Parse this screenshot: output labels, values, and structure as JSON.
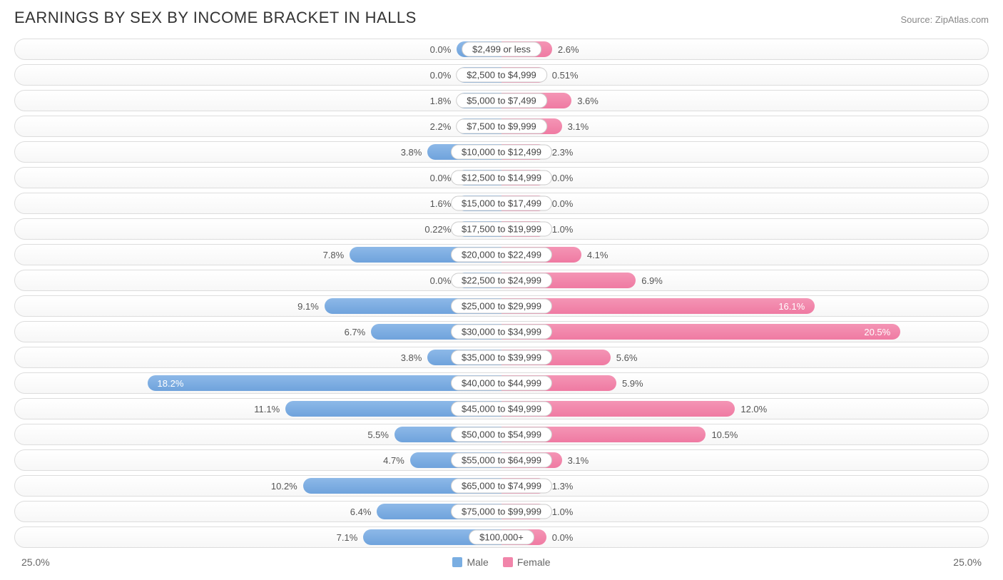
{
  "title": "EARNINGS BY SEX BY INCOME BRACKET IN HALLS",
  "source": "Source: ZipAtlas.com",
  "chart": {
    "type": "bidirectional-bar",
    "max_percent": 25.0,
    "axis_label_left": "25.0%",
    "axis_label_right": "25.0%",
    "min_bar_percent": 2.3,
    "inside_label_threshold": 14.0,
    "colors": {
      "male": "#7aaee2",
      "female": "#f185aa",
      "track_border": "#dddddd",
      "text": "#555555",
      "text_inside": "#ffffff",
      "category_bg": "#ffffff",
      "category_border": "#cccccc"
    },
    "legend": [
      {
        "label": "Male",
        "color": "#7aaee2"
      },
      {
        "label": "Female",
        "color": "#f185aa"
      }
    ],
    "rows": [
      {
        "category": "$2,499 or less",
        "male": 0.0,
        "female": 2.6,
        "male_label": "0.0%",
        "female_label": "2.6%"
      },
      {
        "category": "$2,500 to $4,999",
        "male": 0.0,
        "female": 0.51,
        "male_label": "0.0%",
        "female_label": "0.51%"
      },
      {
        "category": "$5,000 to $7,499",
        "male": 1.8,
        "female": 3.6,
        "male_label": "1.8%",
        "female_label": "3.6%"
      },
      {
        "category": "$7,500 to $9,999",
        "male": 2.2,
        "female": 3.1,
        "male_label": "2.2%",
        "female_label": "3.1%"
      },
      {
        "category": "$10,000 to $12,499",
        "male": 3.8,
        "female": 2.3,
        "male_label": "3.8%",
        "female_label": "2.3%"
      },
      {
        "category": "$12,500 to $14,999",
        "male": 0.0,
        "female": 0.0,
        "male_label": "0.0%",
        "female_label": "0.0%"
      },
      {
        "category": "$15,000 to $17,499",
        "male": 1.6,
        "female": 0.0,
        "male_label": "1.6%",
        "female_label": "0.0%"
      },
      {
        "category": "$17,500 to $19,999",
        "male": 0.22,
        "female": 1.0,
        "male_label": "0.22%",
        "female_label": "1.0%"
      },
      {
        "category": "$20,000 to $22,499",
        "male": 7.8,
        "female": 4.1,
        "male_label": "7.8%",
        "female_label": "4.1%"
      },
      {
        "category": "$22,500 to $24,999",
        "male": 0.0,
        "female": 6.9,
        "male_label": "0.0%",
        "female_label": "6.9%"
      },
      {
        "category": "$25,000 to $29,999",
        "male": 9.1,
        "female": 16.1,
        "male_label": "9.1%",
        "female_label": "16.1%"
      },
      {
        "category": "$30,000 to $34,999",
        "male": 6.7,
        "female": 20.5,
        "male_label": "6.7%",
        "female_label": "20.5%"
      },
      {
        "category": "$35,000 to $39,999",
        "male": 3.8,
        "female": 5.6,
        "male_label": "3.8%",
        "female_label": "5.6%"
      },
      {
        "category": "$40,000 to $44,999",
        "male": 18.2,
        "female": 5.9,
        "male_label": "18.2%",
        "female_label": "5.9%"
      },
      {
        "category": "$45,000 to $49,999",
        "male": 11.1,
        "female": 12.0,
        "male_label": "11.1%",
        "female_label": "12.0%"
      },
      {
        "category": "$50,000 to $54,999",
        "male": 5.5,
        "female": 10.5,
        "male_label": "5.5%",
        "female_label": "10.5%"
      },
      {
        "category": "$55,000 to $64,999",
        "male": 4.7,
        "female": 3.1,
        "male_label": "4.7%",
        "female_label": "3.1%"
      },
      {
        "category": "$65,000 to $74,999",
        "male": 10.2,
        "female": 1.3,
        "male_label": "10.2%",
        "female_label": "1.3%"
      },
      {
        "category": "$75,000 to $99,999",
        "male": 6.4,
        "female": 1.0,
        "male_label": "6.4%",
        "female_label": "1.0%"
      },
      {
        "category": "$100,000+",
        "male": 7.1,
        "female": 0.0,
        "male_label": "7.1%",
        "female_label": "0.0%"
      }
    ]
  }
}
